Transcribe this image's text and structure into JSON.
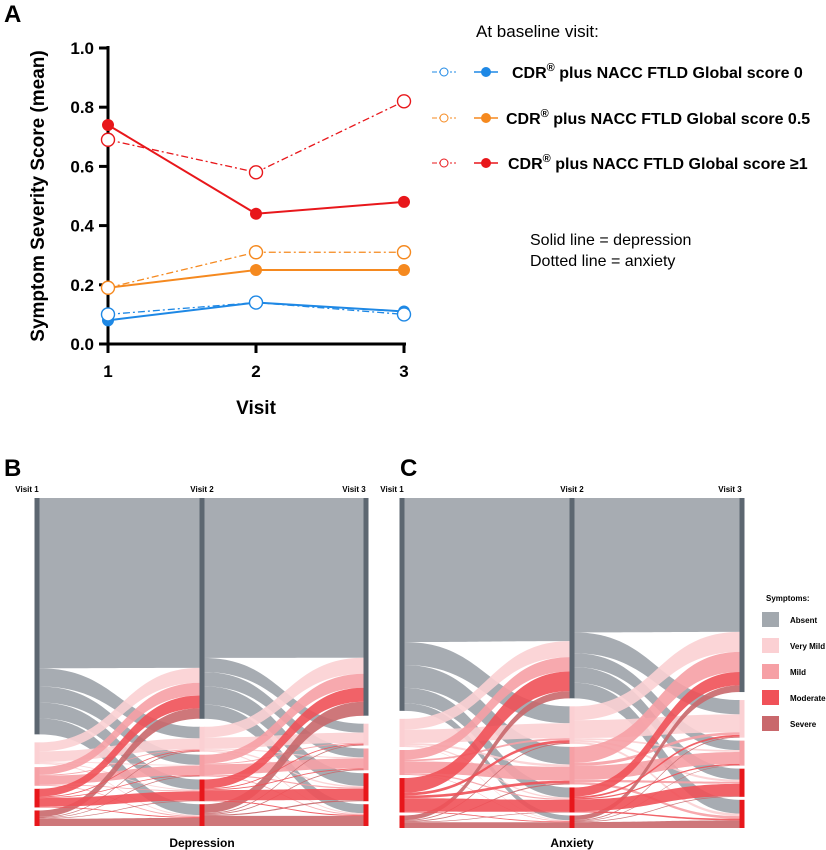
{
  "panels": {
    "a": "A",
    "b": "B",
    "c": "C"
  },
  "chart_data": [
    {
      "type": "line",
      "panel": "A",
      "ylabel": "Symptom Severity Score (mean)",
      "xlabel": "Visit",
      "x": [
        1,
        2,
        3
      ],
      "ylim": [
        0,
        1.0
      ],
      "yticks": [
        "0.0",
        "0.2",
        "0.4",
        "0.6",
        "0.8",
        "1.0"
      ],
      "xticks": [
        "1",
        "2",
        "3"
      ],
      "legend_title": "At baseline visit:",
      "legend_items": [
        {
          "prefix": "CDR",
          "sup": "®",
          "suffix": " plus NACC FTLD Global score 0",
          "color": "#1e88e5"
        },
        {
          "prefix": "CDR",
          "sup": "®",
          "suffix": " plus NACC FTLD Global score 0.5",
          "color": "#f5891f"
        },
        {
          "prefix": "CDR",
          "sup": "®",
          "suffix": " plus NACC FTLD Global score ≥1",
          "color": "#e8171b"
        }
      ],
      "note_lines": [
        "Solid line = depression",
        "Dotted line = anxiety"
      ],
      "series": [
        {
          "group": 0,
          "measure": "depression",
          "style": "solid",
          "color": "#1e88e5",
          "values": [
            0.08,
            0.14,
            0.11
          ]
        },
        {
          "group": 0,
          "measure": "anxiety",
          "style": "dotted",
          "color": "#1e88e5",
          "values": [
            0.1,
            0.14,
            0.1
          ]
        },
        {
          "group": 1,
          "measure": "depression",
          "style": "solid",
          "color": "#f5891f",
          "values": [
            0.19,
            0.25,
            0.25
          ]
        },
        {
          "group": 1,
          "measure": "anxiety",
          "style": "dotted",
          "color": "#f5891f",
          "values": [
            0.19,
            0.31,
            0.31
          ]
        },
        {
          "group": 2,
          "measure": "depression",
          "style": "solid",
          "color": "#e8171b",
          "values": [
            0.74,
            0.44,
            0.48
          ]
        },
        {
          "group": 2,
          "measure": "anxiety",
          "style": "dotted",
          "color": "#e8171b",
          "values": [
            0.69,
            0.58,
            0.82
          ]
        }
      ]
    },
    {
      "type": "sankey",
      "panel": "B",
      "title": "Depression",
      "stages": [
        "Visit 1",
        "Visit 2",
        "Visit 3"
      ],
      "categories": [
        "Absent",
        "Very Mild",
        "Mild",
        "Moderate",
        "Severe"
      ],
      "proportions": [
        [
          0.76,
          0.07,
          0.06,
          0.06,
          0.05
        ],
        [
          0.71,
          0.08,
          0.07,
          0.07,
          0.07
        ],
        [
          0.7,
          0.07,
          0.07,
          0.09,
          0.07
        ]
      ]
    },
    {
      "type": "sankey",
      "panel": "C",
      "title": "Anxiety",
      "stages": [
        "Visit 1",
        "Visit 2",
        "Visit 3"
      ],
      "categories": [
        "Absent",
        "Very Mild",
        "Mild",
        "Moderate",
        "Severe"
      ],
      "proportions": [
        [
          0.68,
          0.09,
          0.08,
          0.11,
          0.04
        ],
        [
          0.64,
          0.12,
          0.12,
          0.08,
          0.04
        ],
        [
          0.62,
          0.12,
          0.08,
          0.09,
          0.09
        ]
      ]
    }
  ],
  "sankey_legend": {
    "title": "Symptoms:",
    "items": [
      {
        "label": "Absent",
        "color": "#a2a8ae"
      },
      {
        "label": "Very Mild",
        "color": "#fbd0d3"
      },
      {
        "label": "Mild",
        "color": "#f6a0a5"
      },
      {
        "label": "Moderate",
        "color": "#f05158"
      },
      {
        "label": "Severe",
        "color": "#c9686c"
      }
    ]
  },
  "colors": {
    "axis": "#000000",
    "node_bar": "#5d6771",
    "absent_flow": "#a2a8ae",
    "very_mild_flow": "#fbd0d3",
    "mild_flow": "#f6a0a5",
    "moderate_flow": "#f05158",
    "severe_flow": "#c9686c",
    "red_node": "#e8171b"
  }
}
